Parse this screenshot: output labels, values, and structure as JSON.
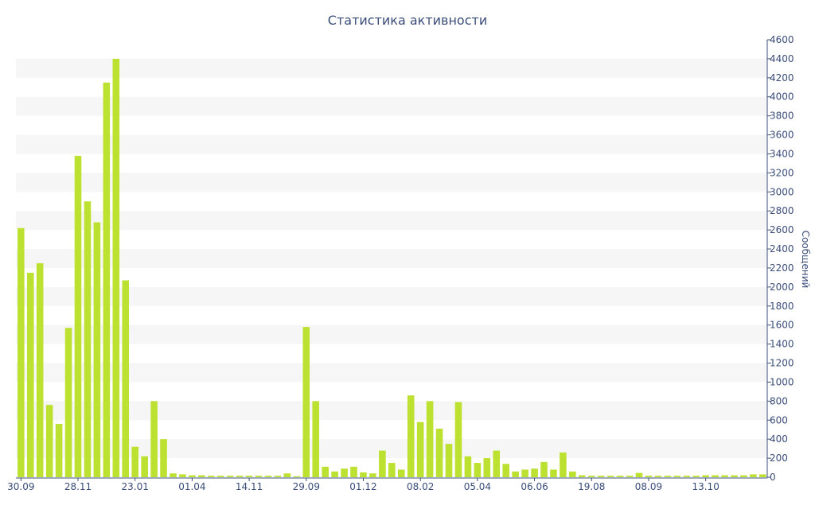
{
  "chart_data": {
    "type": "bar",
    "title": "Статистика активности",
    "ylabel": "Сообщений",
    "xlabel": "",
    "ylim": [
      0,
      4600
    ],
    "yticks": [
      0,
      200,
      400,
      600,
      800,
      1000,
      1200,
      1400,
      1600,
      1800,
      2000,
      2200,
      2400,
      2600,
      2800,
      3000,
      3200,
      3400,
      3600,
      3800,
      4000,
      4200,
      4400,
      4600
    ],
    "y_axis_side": "right",
    "grid": "alternating horizontal bands",
    "bar_color": "#bde131",
    "band_color": "#f6f6f6",
    "text_color": "#3a4d7a",
    "xtick_labels": [
      {
        "index": 0,
        "label": "30.09"
      },
      {
        "index": 6,
        "label": "28.11"
      },
      {
        "index": 12,
        "label": "23.01"
      },
      {
        "index": 18,
        "label": "01.04"
      },
      {
        "index": 24,
        "label": "14.11"
      },
      {
        "index": 30,
        "label": "29.09"
      },
      {
        "index": 36,
        "label": "01.12"
      },
      {
        "index": 42,
        "label": "08.02"
      },
      {
        "index": 48,
        "label": "05.04"
      },
      {
        "index": 54,
        "label": "06.06"
      },
      {
        "index": 60,
        "label": "19.08"
      },
      {
        "index": 66,
        "label": "08.09"
      },
      {
        "index": 72,
        "label": "13.10"
      }
    ],
    "values": [
      2620,
      2150,
      2250,
      760,
      560,
      1570,
      3380,
      2900,
      2680,
      4150,
      4400,
      2070,
      320,
      220,
      800,
      400,
      40,
      30,
      20,
      20,
      15,
      15,
      15,
      15,
      15,
      15,
      15,
      15,
      40,
      10,
      1580,
      800,
      110,
      60,
      90,
      110,
      50,
      40,
      280,
      150,
      80,
      860,
      580,
      800,
      510,
      350,
      790,
      220,
      150,
      200,
      280,
      140,
      60,
      80,
      90,
      160,
      80,
      260,
      60,
      20,
      15,
      15,
      15,
      15,
      15,
      45,
      15,
      15,
      15,
      15,
      15,
      15,
      20,
      20,
      20,
      20,
      20,
      30,
      30
    ]
  }
}
